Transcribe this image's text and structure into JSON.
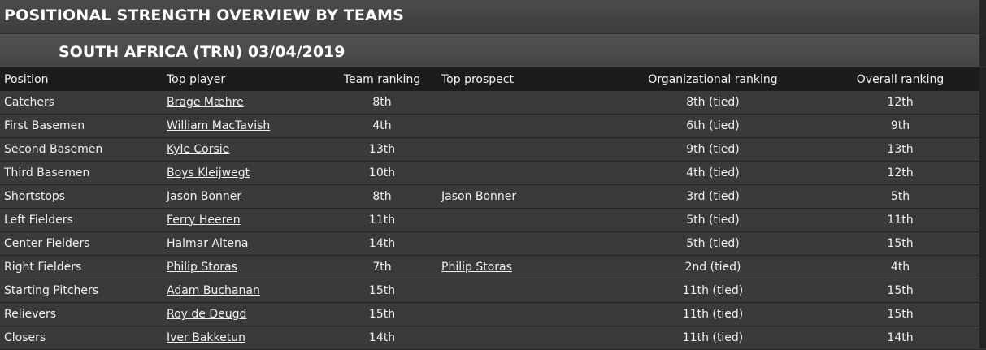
{
  "header": {
    "title": "POSITIONAL STRENGTH OVERVIEW BY TEAMS"
  },
  "subheader": {
    "team": "SOUTH AFRICA (TRN) 03/04/2019"
  },
  "table": {
    "columns": {
      "position": "Position",
      "top_player": "Top player",
      "team_ranking": "Team ranking",
      "top_prospect": "Top prospect",
      "organizational_ranking": "Organizational ranking",
      "overall_ranking": "Overall ranking"
    },
    "rows": [
      {
        "position": "Catchers",
        "top_player": "Brage Mæhre",
        "team_ranking": "8th",
        "top_prospect": "",
        "org_ranking": "8th (tied)",
        "overall": "12th"
      },
      {
        "position": "First Basemen",
        "top_player": "William MacTavish",
        "team_ranking": "4th",
        "top_prospect": "",
        "org_ranking": "6th (tied)",
        "overall": "9th"
      },
      {
        "position": "Second Basemen",
        "top_player": "Kyle Corsie",
        "team_ranking": "13th",
        "top_prospect": "",
        "org_ranking": "9th (tied)",
        "overall": "13th"
      },
      {
        "position": "Third Basemen",
        "top_player": "Boys Kleijwegt",
        "team_ranking": "10th",
        "top_prospect": "",
        "org_ranking": "4th (tied)",
        "overall": "12th"
      },
      {
        "position": "Shortstops",
        "top_player": "Jason Bonner",
        "team_ranking": "8th",
        "top_prospect": "Jason Bonner",
        "org_ranking": "3rd (tied)",
        "overall": "5th"
      },
      {
        "position": "Left Fielders",
        "top_player": "Ferry Heeren",
        "team_ranking": "11th",
        "top_prospect": "",
        "org_ranking": "5th (tied)",
        "overall": "11th"
      },
      {
        "position": "Center Fielders",
        "top_player": "Halmar Altena",
        "team_ranking": "14th",
        "top_prospect": "",
        "org_ranking": "5th (tied)",
        "overall": "15th"
      },
      {
        "position": "Right Fielders",
        "top_player": "Philip Storas",
        "team_ranking": "7th",
        "top_prospect": "Philip Storas",
        "org_ranking": "2nd (tied)",
        "overall": "4th"
      },
      {
        "position": "Starting Pitchers",
        "top_player": "Adam Buchanan",
        "team_ranking": "15th",
        "top_prospect": "",
        "org_ranking": "11th (tied)",
        "overall": "15th"
      },
      {
        "position": "Relievers",
        "top_player": "Roy de Deugd",
        "team_ranking": "15th",
        "top_prospect": "",
        "org_ranking": "11th (tied)",
        "overall": "15th"
      },
      {
        "position": "Closers",
        "top_player": "Iver Bakketun",
        "team_ranking": "14th",
        "top_prospect": "",
        "org_ranking": "11th (tied)",
        "overall": "14th"
      }
    ]
  }
}
